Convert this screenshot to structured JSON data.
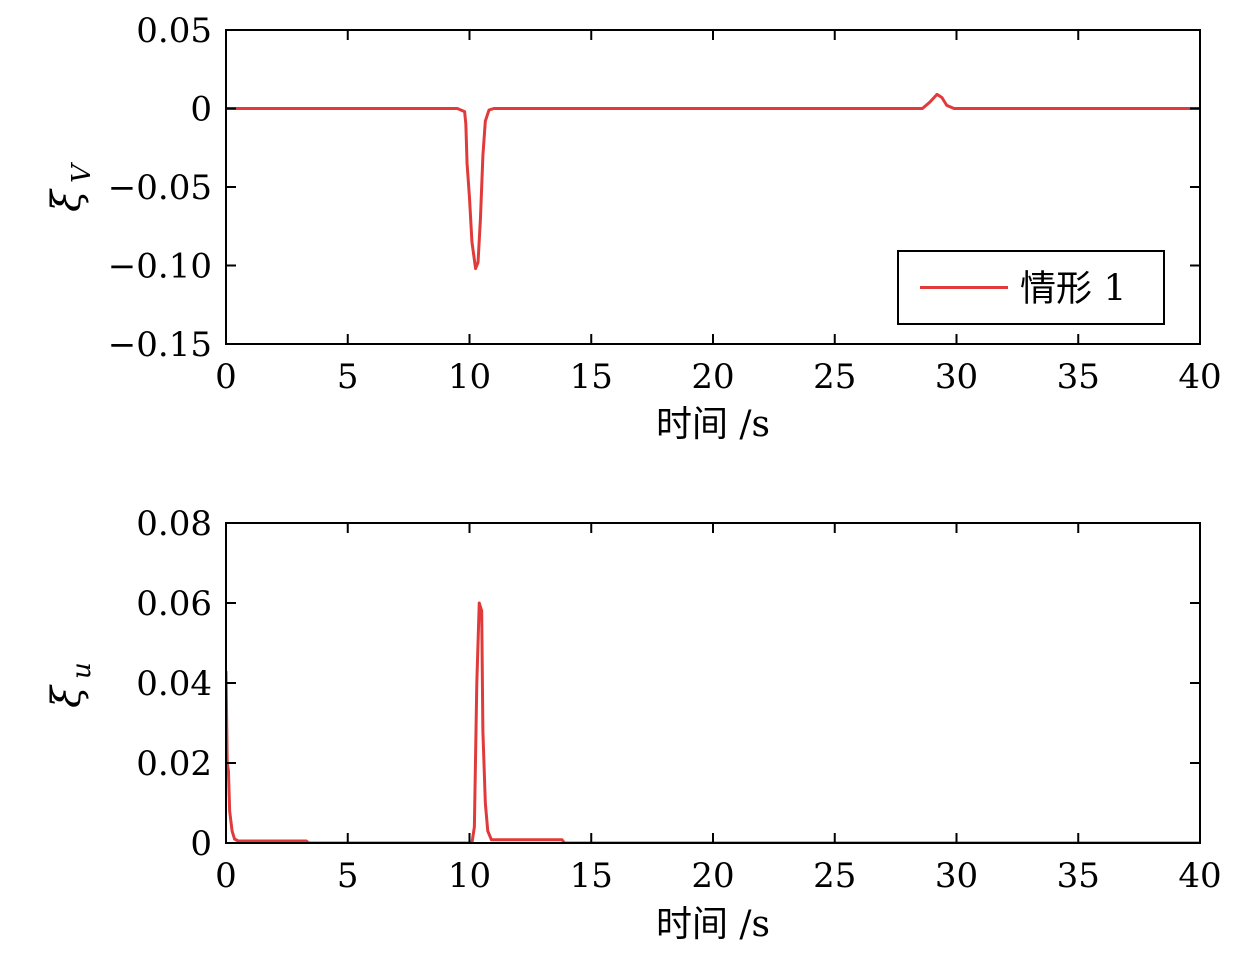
{
  "chart_data": [
    {
      "type": "line",
      "ylabel": "ξ",
      "ylabel_sub": "V",
      "xlabel": "时间 /s",
      "xlim": [
        0,
        40
      ],
      "ylim": [
        -0.15,
        0.05
      ],
      "xticks": [
        0,
        5,
        10,
        15,
        20,
        25,
        30,
        35,
        40
      ],
      "xtick_labels": [
        "0",
        "5",
        "10",
        "15",
        "20",
        "25",
        "30",
        "35",
        "40"
      ],
      "yticks": [
        -0.15,
        -0.1,
        -0.05,
        0,
        0.05
      ],
      "ytick_labels": [
        "−0.15",
        "−0.10",
        "−0.05",
        "0",
        "0.05"
      ],
      "legend": {
        "position": "bottom-right",
        "entries": [
          "情形 1"
        ]
      },
      "series": [
        {
          "name": "情形 1",
          "color": "#e03a3a",
          "points": [
            [
              0,
              0
            ],
            [
              9.5,
              0
            ],
            [
              9.8,
              -0.002
            ],
            [
              9.85,
              -0.01
            ],
            [
              9.9,
              -0.035
            ],
            [
              10.0,
              -0.057
            ],
            [
              10.1,
              -0.085
            ],
            [
              10.25,
              -0.102
            ],
            [
              10.35,
              -0.098
            ],
            [
              10.45,
              -0.07
            ],
            [
              10.55,
              -0.03
            ],
            [
              10.65,
              -0.008
            ],
            [
              10.8,
              -0.001
            ],
            [
              11.0,
              0
            ],
            [
              28.6,
              0
            ],
            [
              28.9,
              0.004
            ],
            [
              29.2,
              0.009
            ],
            [
              29.4,
              0.007
            ],
            [
              29.6,
              0.002
            ],
            [
              29.9,
              0
            ],
            [
              40,
              0
            ]
          ]
        }
      ]
    },
    {
      "type": "line",
      "ylabel": "ξ",
      "ylabel_sub": "u",
      "xlabel": "时间 /s",
      "xlim": [
        0,
        40
      ],
      "ylim": [
        0,
        0.08
      ],
      "xticks": [
        0,
        5,
        10,
        15,
        20,
        25,
        30,
        35,
        40
      ],
      "xtick_labels": [
        "0",
        "5",
        "10",
        "15",
        "20",
        "25",
        "30",
        "35",
        "40"
      ],
      "yticks": [
        0,
        0.02,
        0.04,
        0.06,
        0.08
      ],
      "ytick_labels": [
        "0",
        "0.02",
        "0.04",
        "0.06",
        "0.08"
      ],
      "series": [
        {
          "name": "情形 1",
          "color": "#e03a3a",
          "points": [
            [
              0,
              0.043
            ],
            [
              0.05,
              0.02
            ],
            [
              0.1,
              0.018
            ],
            [
              0.15,
              0.008
            ],
            [
              0.25,
              0.003
            ],
            [
              0.35,
              0.001
            ],
            [
              0.5,
              0.0005
            ],
            [
              3.3,
              0.0005
            ],
            [
              3.4,
              0
            ],
            [
              10.1,
              0
            ],
            [
              10.2,
              0.004
            ],
            [
              10.3,
              0.04
            ],
            [
              10.4,
              0.06
            ],
            [
              10.5,
              0.058
            ],
            [
              10.55,
              0.028
            ],
            [
              10.65,
              0.01
            ],
            [
              10.75,
              0.003
            ],
            [
              10.9,
              0.0008
            ],
            [
              13.8,
              0.0008
            ],
            [
              13.9,
              0
            ],
            [
              40,
              0
            ]
          ]
        }
      ]
    }
  ]
}
